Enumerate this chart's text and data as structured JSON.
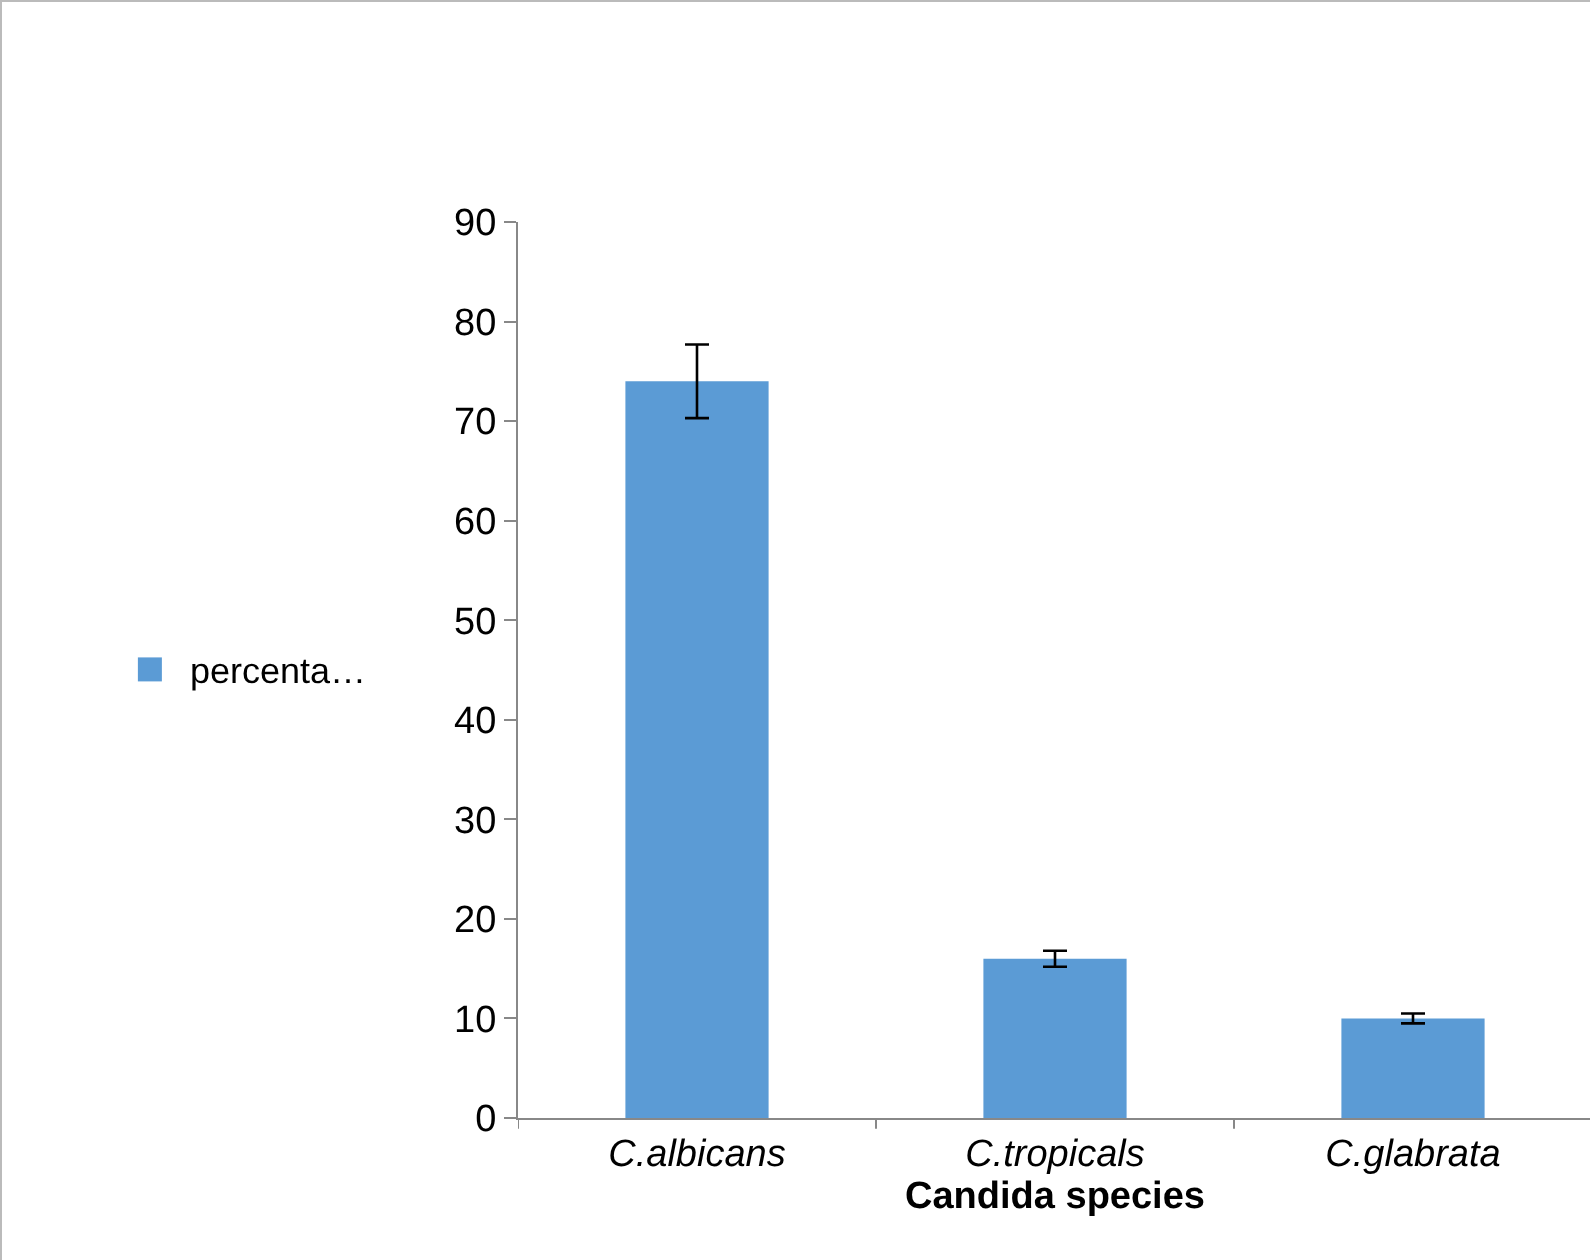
{
  "chart_data": {
    "type": "bar",
    "xlabel": "Candida species",
    "categories": [
      "C.albicans",
      "C.tropicals",
      "C.glabrata"
    ],
    "series": [
      {
        "name": "percenta…",
        "color": "#5b9bd5",
        "values": [
          74,
          16,
          10
        ],
        "errors": [
          3.7,
          0.8,
          0.5
        ]
      }
    ],
    "ylim": [
      0,
      90
    ],
    "yticks": [
      0,
      10,
      20,
      30,
      40,
      50,
      60,
      70,
      80,
      90
    ],
    "grid": false,
    "legend": "left"
  }
}
